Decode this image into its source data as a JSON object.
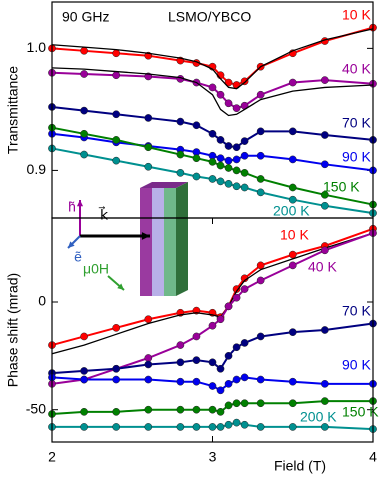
{
  "chart_data": [
    {
      "type": "scatter",
      "ylabel": "Transmittance",
      "annotations": [
        "90 GHz",
        "LSMO/YBCO"
      ],
      "inset_labels": [
        "h̃",
        "k⃗",
        "ẽ",
        "μ0H"
      ],
      "xlim": [
        2,
        4
      ],
      "ylim": [
        0.861,
        1.038
      ],
      "yticks": [
        {
          "value": 0.9,
          "label": "0.9"
        },
        {
          "value": 1,
          "label": "1.0"
        }
      ],
      "x": [
        2,
        2.2,
        2.4,
        2.6,
        2.8,
        2.9,
        3.0,
        3.05,
        3.1,
        3.15,
        3.2,
        3.3,
        3.5,
        3.7,
        4.0
      ],
      "fit_color": "#000000",
      "series": [
        {
          "name": "10 K",
          "color": "#ff0000",
          "values": [
            1.0,
            0.998,
            0.996,
            0.994,
            0.99,
            0.988,
            0.985,
            0.978,
            0.972,
            0.97,
            0.973,
            0.985,
            0.996,
            1.006,
            1.017
          ],
          "fit": [
            1.003,
            1.001,
            0.999,
            0.996,
            0.992,
            0.989,
            0.983,
            0.975,
            0.968,
            0.967,
            0.972,
            0.985,
            0.998,
            1.007,
            1.016
          ]
        },
        {
          "name": "40 K",
          "color": "#990099",
          "values": [
            0.98,
            0.979,
            0.978,
            0.977,
            0.975,
            0.972,
            0.968,
            0.962,
            0.955,
            0.951,
            0.953,
            0.962,
            0.972,
            0.974,
            0.971
          ],
          "fit": [
            0.984,
            0.983,
            0.981,
            0.979,
            0.976,
            0.972,
            0.962,
            0.95,
            0.945,
            0.946,
            0.95,
            0.958,
            0.965,
            0.968,
            0.97
          ]
        },
        {
          "name": "70 K",
          "color": "#000080",
          "values": [
            0.952,
            0.949,
            0.946,
            0.943,
            0.94,
            0.937,
            0.93,
            0.925,
            0.92,
            0.919,
            0.924,
            0.932,
            0.932,
            0.929,
            0.925
          ]
        },
        {
          "name": "90 K",
          "color": "#0000ee",
          "values": [
            0.93,
            0.927,
            0.923,
            0.92,
            0.917,
            0.915,
            0.912,
            0.91,
            0.908,
            0.909,
            0.912,
            0.912,
            0.909,
            0.905,
            0.9
          ]
        },
        {
          "name": "150 K",
          "color": "#008000",
          "values": [
            0.935,
            0.93,
            0.925,
            0.919,
            0.913,
            0.91,
            0.907,
            0.904,
            0.902,
            0.9,
            0.898,
            0.893,
            0.886,
            0.88,
            0.872
          ]
        },
        {
          "name": "200 K",
          "color": "#009090",
          "values": [
            0.918,
            0.913,
            0.908,
            0.903,
            0.898,
            0.895,
            0.893,
            0.891,
            0.889,
            0.887,
            0.886,
            0.882,
            0.876,
            0.871,
            0.865
          ]
        }
      ]
    },
    {
      "type": "scatter",
      "ylabel": "Phase shift (mrad)",
      "xlabel": "Field (T)",
      "xlim": [
        2,
        4
      ],
      "xticks": [
        2,
        3,
        4
      ],
      "ylim": [
        -65,
        39
      ],
      "yticks": [
        -50,
        0
      ],
      "x": [
        2,
        2.2,
        2.4,
        2.6,
        2.8,
        2.9,
        3.0,
        3.05,
        3.1,
        3.15,
        3.2,
        3.3,
        3.5,
        3.7,
        4.0
      ],
      "fit_color": "#000000",
      "series": [
        {
          "name": "10 K",
          "color": "#ff0000",
          "values": [
            -20,
            -16,
            -12,
            -8,
            -5,
            -4,
            -5,
            -7,
            -2,
            6,
            11,
            17,
            22,
            26,
            34
          ],
          "fit": [
            -24,
            -20,
            -15,
            -10,
            -6,
            -5,
            -6,
            -7,
            -2,
            5,
            10,
            15,
            20,
            25,
            32
          ]
        },
        {
          "name": "40 K",
          "color": "#990099",
          "values": [
            -38,
            -36,
            -31,
            -26,
            -20,
            -16,
            -11,
            -8,
            -2,
            2,
            6,
            10,
            17,
            24,
            32
          ]
        },
        {
          "name": "70 K",
          "color": "#000080",
          "values": [
            -33,
            -32,
            -31,
            -29,
            -28,
            -27,
            -28,
            -31,
            -25,
            -21,
            -19,
            -16,
            -14,
            -13,
            -10
          ]
        },
        {
          "name": "90 K",
          "color": "#0000ee",
          "values": [
            -35,
            -36,
            -36,
            -36,
            -37,
            -37,
            -39,
            -41,
            -38,
            -36,
            -35,
            -36,
            -37,
            -38,
            -38
          ]
        },
        {
          "name": "150 K",
          "color": "#008000",
          "values": [
            -52,
            -51,
            -51,
            -50,
            -50,
            -50,
            -50,
            -51,
            -48,
            -47,
            -47,
            -47,
            -47,
            -46,
            -46
          ]
        },
        {
          "name": "200 K",
          "color": "#009090",
          "values": [
            -58,
            -58,
            -58,
            -58,
            -58,
            -58,
            -58,
            -58,
            -57,
            -56,
            -57,
            -58,
            -58,
            -58,
            -59
          ]
        }
      ]
    }
  ]
}
